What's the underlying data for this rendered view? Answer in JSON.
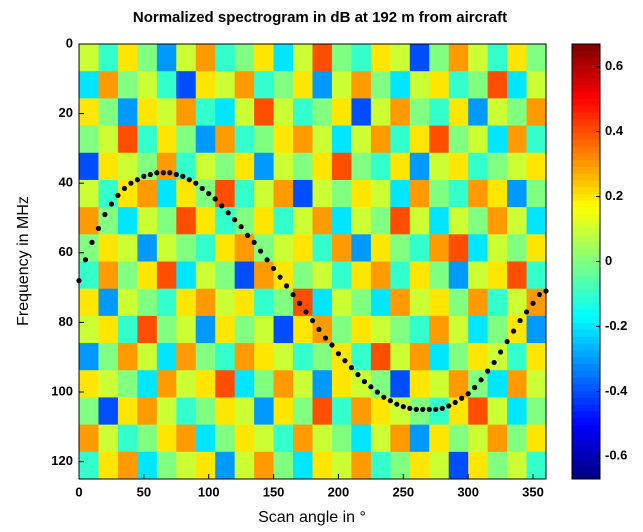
{
  "chart_data": {
    "type": "heatmap",
    "title": "Normalized  spectrogram in dB at 192 m from aircraft",
    "xlabel": "Scan angle in °",
    "ylabel": "Frequency in MHz",
    "xlim": [
      0,
      360
    ],
    "xticks": [
      0,
      50,
      100,
      150,
      200,
      250,
      300,
      350
    ],
    "ylim": [
      0,
      125
    ],
    "yticks": [
      0,
      20,
      40,
      60,
      80,
      100,
      120
    ],
    "y_inverted": true,
    "colormap": "jet",
    "z": [
      [
        0.1,
        -0.1,
        0.2,
        0,
        -0.3,
        0.1,
        0.3,
        -0.1,
        0,
        0.2,
        -0.2,
        0.1,
        0.4,
        0,
        -0.1,
        0.2,
        0.1,
        -0.4,
        0,
        0.3,
        0.1,
        -0.1,
        0.2,
        0
      ],
      [
        -0.2,
        0.3,
        0,
        0.1,
        -0.1,
        -0.4,
        0.2,
        0.1,
        0.3,
        -0.1,
        0,
        0.2,
        -0.3,
        0.1,
        0.3,
        0,
        -0.2,
        0.1,
        0.2,
        -0.1,
        0,
        0.4,
        -0.2,
        0.1
      ],
      [
        0.2,
        0,
        -0.3,
        0.2,
        0.1,
        0.3,
        -0.1,
        -0.2,
        0.1,
        0.4,
        0.1,
        -0.1,
        0,
        0.2,
        -0.4,
        0.1,
        0.3,
        0,
        -0.1,
        0.2,
        -0.3,
        0.1,
        0,
        0.3
      ],
      [
        0,
        0.1,
        0.4,
        -0.1,
        0.2,
        0,
        -0.3,
        0.3,
        -0.1,
        0,
        0.2,
        0.3,
        0.1,
        -0.2,
        0.1,
        0.3,
        -0.1,
        0.2,
        0.4,
        0,
        0.1,
        -0.2,
        0.3,
        -0.1
      ],
      [
        -0.4,
        0.2,
        0.1,
        0,
        0.3,
        -0.1,
        0.1,
        0,
        0.2,
        -0.3,
        0.1,
        0,
        0.2,
        0.4,
        0,
        -0.1,
        0.2,
        -0.3,
        0.1,
        0.2,
        -0.1,
        0,
        0.1,
        0.2
      ],
      [
        0.1,
        -0.1,
        0.2,
        0.3,
        -0.2,
        0.2,
        0,
        0.4,
        -0.1,
        0.1,
        0.3,
        -0.4,
        0.1,
        0,
        0.2,
        0.1,
        -0.2,
        0.3,
        0,
        -0.1,
        0.3,
        0.2,
        -0.3,
        0
      ],
      [
        0.3,
        0,
        -0.2,
        0.1,
        0,
        0.4,
        0.2,
        -0.1,
        0,
        0.2,
        -0.1,
        0.1,
        0.3,
        -0.2,
        0.1,
        0,
        0.4,
        0.1,
        -0.2,
        0.1,
        0,
        0.3,
        0.1,
        -0.2
      ],
      [
        0,
        0.2,
        0.1,
        -0.3,
        0.1,
        0,
        -0.1,
        0.2,
        0.3,
        0,
        0.1,
        0.2,
        -0.1,
        0.3,
        -0.3,
        0.2,
        0,
        -0.1,
        0.3,
        0.4,
        -0.2,
        0.1,
        0,
        0.2
      ],
      [
        -0.1,
        0.3,
        0,
        0.2,
        0.4,
        -0.2,
        0.1,
        0,
        -0.4,
        0.3,
        0.2,
        0,
        0.1,
        -0.1,
        0.2,
        0.3,
        -0.1,
        0.2,
        0,
        -0.3,
        0.1,
        0.2,
        0.4,
        -0.1
      ],
      [
        0.2,
        -0.3,
        0.1,
        0,
        -0.1,
        0.2,
        0.3,
        0.1,
        0.2,
        -0.1,
        0,
        0.4,
        -0.2,
        0.1,
        0,
        -0.2,
        0.3,
        0.1,
        0.2,
        0,
        0.3,
        -0.1,
        0.1,
        0.3
      ],
      [
        0.1,
        0.2,
        -0.1,
        0.4,
        0,
        0.1,
        -0.3,
        0.2,
        0,
        0.1,
        -0.4,
        0.2,
        0.3,
        0,
        0.2,
        0.1,
        0,
        -0.1,
        0.3,
        0.1,
        -0.2,
        0,
        0.2,
        -0.3
      ],
      [
        -0.3,
        0,
        0.3,
        0.1,
        -0.2,
        0.3,
        0,
        -0.1,
        0.3,
        0.2,
        0.1,
        -0.1,
        0,
        0.2,
        -0.1,
        0.4,
        0.1,
        0.3,
        -0.2,
        0,
        0.2,
        0.1,
        -0.1,
        0.2
      ],
      [
        0.2,
        0.1,
        0,
        -0.2,
        0.3,
        0.1,
        0.2,
        0.4,
        -0.2,
        0,
        0.3,
        0.1,
        -0.3,
        0.2,
        0.1,
        0,
        -0.4,
        0.2,
        0.1,
        0.3,
        0,
        -0.2,
        0.3,
        0.1
      ],
      [
        0,
        -0.4,
        0.2,
        0.3,
        0.1,
        -0.1,
        0,
        0.2,
        0.1,
        -0.3,
        0.2,
        0,
        0.4,
        -0.1,
        0.3,
        0.2,
        0.1,
        0,
        -0.1,
        0.2,
        0.4,
        0.1,
        -0.2,
        0
      ],
      [
        0.3,
        0.1,
        -0.1,
        0,
        0.2,
        0.3,
        -0.2,
        0,
        0.2,
        0.1,
        -0.1,
        0.3,
        0.1,
        0,
        -0.2,
        0.1,
        0.3,
        -0.3,
        0.2,
        0,
        0.1,
        0.3,
        0,
        0.2
      ],
      [
        -0.1,
        0.2,
        0.3,
        -0.2,
        0,
        0.1,
        0.2,
        -0.3,
        0.1,
        0.3,
        0,
        -0.2,
        0.2,
        0.1,
        0.3,
        -0.1,
        0,
        0.2,
        0.1,
        -0.4,
        0.2,
        0,
        0.1,
        -0.1
      ]
    ],
    "curve": {
      "color": "#000000",
      "x": [
        0,
        5,
        10,
        15,
        20,
        25,
        30,
        35,
        40,
        45,
        50,
        55,
        60,
        65,
        70,
        75,
        80,
        85,
        90,
        95,
        100,
        105,
        110,
        115,
        120,
        125,
        130,
        135,
        140,
        145,
        150,
        155,
        160,
        165,
        170,
        175,
        180,
        185,
        190,
        195,
        200,
        205,
        210,
        215,
        220,
        225,
        230,
        235,
        240,
        245,
        250,
        255,
        260,
        265,
        270,
        275,
        280,
        285,
        290,
        295,
        300,
        305,
        310,
        315,
        320,
        325,
        330,
        335,
        340,
        345,
        350,
        355,
        360
      ],
      "y": [
        68,
        62,
        57,
        53,
        49,
        46,
        43.5,
        41.5,
        40,
        39,
        38,
        37.5,
        37,
        37,
        37,
        37.5,
        38,
        39,
        40,
        41.5,
        43,
        44.5,
        46.5,
        48.5,
        50.5,
        52.5,
        55,
        57,
        59.5,
        62,
        64.5,
        67,
        69.5,
        72,
        74.5,
        77,
        79.5,
        82,
        84.5,
        86.5,
        89,
        91,
        93,
        95,
        97,
        98.5,
        100,
        101.5,
        102.5,
        103.5,
        104.2,
        104.7,
        105,
        105,
        105,
        105,
        104.7,
        104,
        103,
        101.8,
        100.5,
        98.7,
        96.5,
        94,
        91.5,
        88.5,
        85.5,
        82.5,
        79.5,
        77,
        74.5,
        72,
        71
      ]
    },
    "colorbar": {
      "lim": [
        -0.67,
        0.67
      ],
      "ticks": [
        -0.6,
        -0.4,
        -0.2,
        0,
        0.2,
        0.4,
        0.6
      ]
    }
  }
}
